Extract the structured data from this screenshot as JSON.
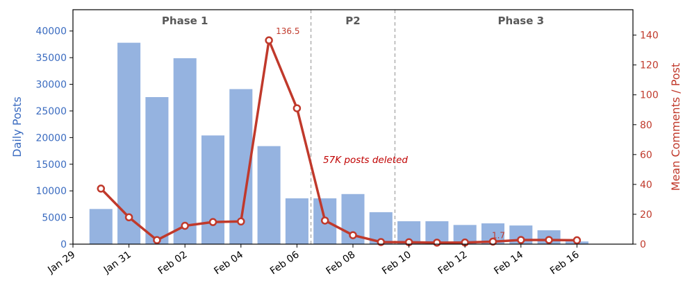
{
  "chart_data": {
    "type": "bar+line",
    "x_dates": [
      "Jan 30",
      "Jan 31",
      "Feb 01",
      "Feb 02",
      "Feb 03",
      "Feb 04",
      "Feb 05",
      "Feb 06",
      "Feb 07",
      "Feb 08",
      "Feb 09",
      "Feb 10",
      "Feb 11",
      "Feb 12",
      "Feb 13",
      "Feb 14",
      "Feb 15",
      "Feb 16"
    ],
    "x_ticks": [
      "Jan 29",
      "Jan 31",
      "Feb 02",
      "Feb 04",
      "Feb 06",
      "Feb 08",
      "Feb 10",
      "Feb 12",
      "Feb 14",
      "Feb 16"
    ],
    "x_range": [
      "Jan 29",
      "Feb 18"
    ],
    "bars": {
      "values": [
        6600,
        37800,
        27600,
        34900,
        20400,
        29100,
        18400,
        8600,
        8600,
        9400,
        6000,
        4300,
        4300,
        3600,
        3900,
        3500,
        2600,
        500
      ],
      "color": "#95b3e0"
    },
    "line": {
      "values": [
        37.2,
        18.0,
        2.7,
        12.3,
        14.8,
        15.2,
        136.5,
        91.0,
        15.8,
        6.0,
        1.4,
        1.3,
        1.0,
        1.1,
        1.7,
        2.8,
        2.8,
        2.6
      ],
      "color": "#c0392b"
    },
    "ylabel_left": "Daily Posts",
    "ylabel_right": "Mean Comments / Post",
    "ylim_left": [
      0,
      44000
    ],
    "ylim_right": [
      0,
      157
    ],
    "yticks_left": [
      "0",
      "5000",
      "10000",
      "15000",
      "20000",
      "25000",
      "30000",
      "35000",
      "40000"
    ],
    "yticks_right": [
      "0",
      "20",
      "40",
      "60",
      "80",
      "100",
      "120",
      "140"
    ],
    "phases": [
      {
        "label": "Phase 1",
        "center_date": "Feb 02"
      },
      {
        "label": "P2",
        "center_date": "Feb 08"
      },
      {
        "label": "Phase 3",
        "center_date": "Feb 14"
      }
    ],
    "phase_boundaries": [
      "Feb 06 12:00",
      "Feb 09 12:00"
    ],
    "annotations": [
      {
        "text": "136.5",
        "date": "Feb 05",
        "value": 136.5
      },
      {
        "text": "1.7",
        "date": "Feb 13",
        "value": 1.7
      },
      {
        "text": "57K posts deleted",
        "date": "Feb 08",
        "value_left": 15200
      }
    ]
  }
}
